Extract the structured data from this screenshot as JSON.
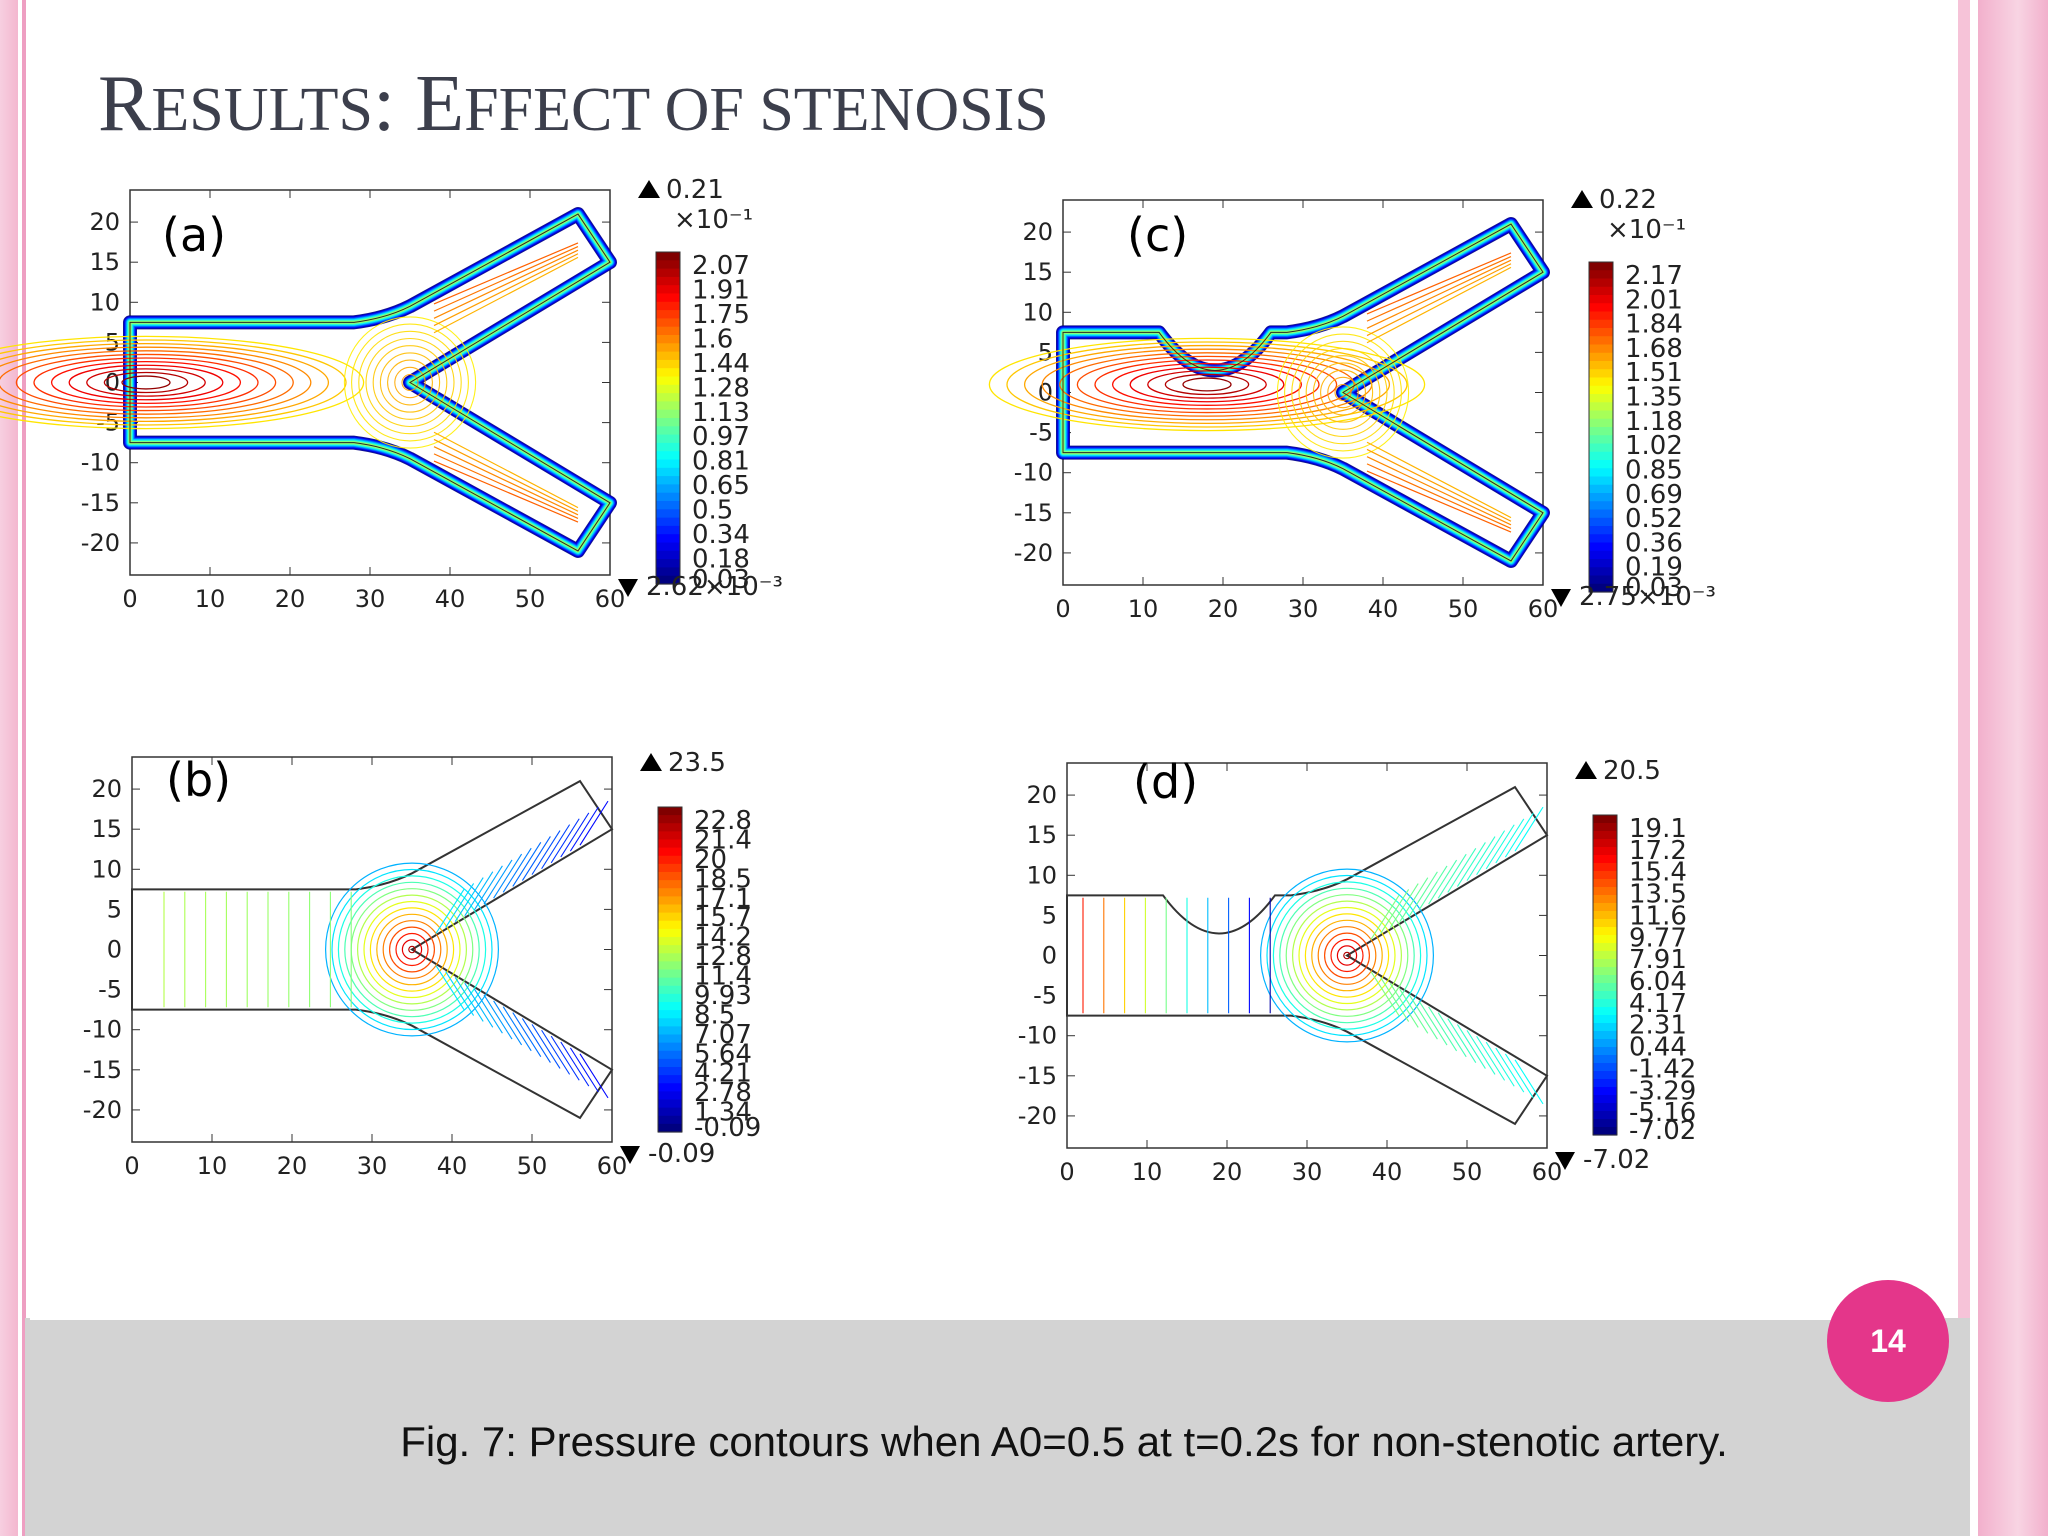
{
  "slide": {
    "title_big_1": "R",
    "title_small_1": "ESULTS",
    "title_colon": ": E",
    "title_small_2": "FFECT OF STENOSIS",
    "page_number": "14",
    "caption": "Fig. 7: Pressure contours when A0=0.5 at t=0.2s for non-stenotic artery.",
    "colors": {
      "accent_pink": "#e4368a",
      "edge_pink": "#f3b7cf",
      "footer_gray": "#d3d3d3"
    }
  },
  "panels": {
    "a": {
      "label": "(a)",
      "legend_max": "0.21",
      "legend_min": "2.62×10⁻³",
      "legend_scale": "×10⁻¹",
      "legend_values": [
        "2.07",
        "1.91",
        "1.75",
        "1.6",
        "1.44",
        "1.28",
        "1.13",
        "0.97",
        "0.81",
        "0.65",
        "0.5",
        "0.34",
        "0.18",
        "0.03"
      ]
    },
    "b": {
      "label": "(b)",
      "legend_max": "23.5",
      "legend_min": "-0.09",
      "legend_values": [
        "22.8",
        "21.4",
        "20",
        "18.5",
        "17.1",
        "15.7",
        "14.2",
        "12.8",
        "11.4",
        "9.93",
        "8.5",
        "7.07",
        "5.64",
        "4.21",
        "2.78",
        "1.34",
        "-0.09"
      ]
    },
    "c": {
      "label": "(c)",
      "legend_max": "0.22",
      "legend_min": "2.75×10⁻³",
      "legend_scale": "×10⁻¹",
      "legend_values": [
        "2.17",
        "2.01",
        "1.84",
        "1.68",
        "1.51",
        "1.35",
        "1.18",
        "1.02",
        "0.85",
        "0.69",
        "0.52",
        "0.36",
        "0.19",
        "0.03"
      ]
    },
    "d": {
      "label": "(d)",
      "legend_max": "20.5",
      "legend_min": "-7.02",
      "legend_values": [
        "19.1",
        "17.2",
        "15.4",
        "13.5",
        "11.6",
        "9.77",
        "7.91",
        "6.04",
        "4.17",
        "2.31",
        "0.44",
        "-1.42",
        "-3.29",
        "-5.16",
        "-7.02"
      ]
    }
  },
  "axes": {
    "x_ticks": [
      "0",
      "10",
      "20",
      "30",
      "40",
      "50",
      "60"
    ],
    "y_ticks": [
      "20",
      "15",
      "10",
      "5",
      "0",
      "-5",
      "-10",
      "-15",
      "-20"
    ]
  }
}
